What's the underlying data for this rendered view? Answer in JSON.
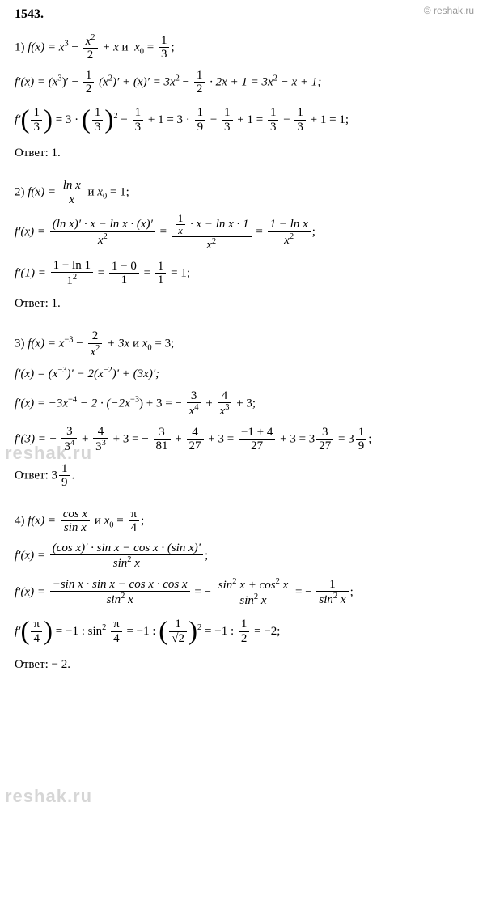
{
  "header": {
    "problem_number": "1543.",
    "copyright": "© reshak.ru"
  },
  "watermark": "reshak.ru",
  "p1": {
    "label": "1)",
    "func": "f(x) = x",
    "and": "и",
    "x0_label": "x",
    "x0_sub": "0",
    "eq": " = ",
    "frac_x2_num": "x",
    "frac_x2_sup": "2",
    "frac_x2_den": "2",
    "one_third_num": "1",
    "one_third_den": "3",
    "plus_x": " + x ",
    "line2_a": "f′(x) = (x",
    "line2_b": ")′ − ",
    "line2_c": "(x",
    "line2_d": ")′ + (x)′ = 3x",
    "line2_e": " − ",
    "line2_f": " · 2x + 1 = 3x",
    "line2_g": " − x + 1;",
    "half_num": "1",
    "half_den": "2",
    "line3_a": "f′",
    "line3_b": " = 3 · ",
    "line3_c": " − ",
    "line3_d": " + 1 = 3 · ",
    "one_ninth_num": "1",
    "one_ninth_den": "9",
    "line3_e": " − ",
    "line3_f": " + 1 = ",
    "line3_g": " − ",
    "line3_h": " + 1 = 1;",
    "answer_label": "Ответ:",
    "answer_val": "  1."
  },
  "p2": {
    "label": "2)",
    "func": "f(x) = ",
    "lnx_num": "ln x",
    "lnx_den": "x",
    "and": "  и  ",
    "x0": "x",
    "x0_sub": "0",
    "x0_val": " = 1;",
    "line2_a": "f′(x) = ",
    "q_num": "(ln x)′ · x − ln x · (x)′",
    "q_den": "x",
    "eq1": " = ",
    "q2_num_a": " · x − ln x · 1",
    "q2_inner_num": "1",
    "q2_inner_den": "x",
    "q2_den": "x",
    "eq2": " = ",
    "q3_num": "1 − ln x",
    "q3_den": "x",
    "semi": ";",
    "line3_a": "f′(1) = ",
    "r1_num": "1 − ln 1",
    "r1_den": "1",
    "eq3": " = ",
    "r2_num": "1 − 0",
    "r2_den": "1",
    "eq4": " = ",
    "r3_num": "1",
    "r3_den": "1",
    "eq5": " = 1;",
    "answer_label": "Ответ:",
    "answer_val": "  1."
  },
  "p3": {
    "label": "3)",
    "func_a": "f(x) = x",
    "exp_m3": "−3",
    "minus": " − ",
    "frac2_num": "2",
    "frac2_den": "x",
    "exp2": "2",
    "plus3x": " + 3x  ",
    "and": "и  ",
    "x0": "x",
    "x0_sub": "0",
    "x0_val": " = 3;",
    "line2": "f′(x) = (x",
    "line2_b": ")′ − 2(x",
    "exp_m2": "−2",
    "line2_c": ")′ + (3x)′;",
    "line3_a": "f′(x) = −3x",
    "exp_m4": "−4",
    "line3_b": " − 2 · (−2x",
    "line3_c": ") + 3 = − ",
    "f3_num": "3",
    "f3_den": "x",
    "exp4": "4",
    "line3_d": " + ",
    "f4_num": "4",
    "f4_den": "x",
    "exp3": "3",
    "line3_e": " + 3;",
    "line4_a": "f′(3) = − ",
    "g1_num": "3",
    "g1_den": "3",
    "line4_b": " + ",
    "g2_num": "4",
    "g2_den": "3",
    "line4_c": " + 3 = − ",
    "g3_num": "3",
    "g3_den": "81",
    "line4_d": " + ",
    "g4_num": "4",
    "g4_den": "27",
    "line4_e": " + 3 = ",
    "g5_num": "−1 + 4",
    "g5_den": "27",
    "line4_f": " + 3 = 3",
    "g6_num": "3",
    "g6_den": "27",
    "line4_g": " = 3",
    "g7_num": "1",
    "g7_den": "9",
    "semi": ";",
    "answer_label": "Ответ:",
    "ans_whole": "  3",
    "ans_num": "1",
    "ans_den": "9",
    "ans_dot": "."
  },
  "p4": {
    "label": "4)",
    "func": "f(x) = ",
    "f_num": "cos x",
    "f_den": "sin x",
    "and": "  и  ",
    "x0": "x",
    "x0_sub": "0",
    "eq": " = ",
    "pi4_num": "π",
    "pi4_den": "4",
    "semi": ";",
    "line2_a": "f′(x) = ",
    "q_num": "(cos x)′ · sin x − cos x · (sin x)′",
    "q_den": "sin",
    "exp2": "2",
    "q_den_x": " x",
    "line3_a": "f′(x) = ",
    "r_num": "−sin x · sin x − cos x · cos x",
    "r_den": "sin",
    "r_den_x": " x",
    "eq2": " = − ",
    "s_num_a": "sin",
    "s_num_b": " x + cos",
    "s_num_c": " x",
    "s_den": "sin",
    "s_den_x": " x",
    "eq3": " = − ",
    "t_num": "1",
    "t_den": "sin",
    "t_den_x": " x",
    "line4_a": "f′",
    "line4_b": " = −1 : sin",
    "line4_c": " ",
    "line4_d": " = −1 : ",
    "u_num": "1",
    "u_den": "√2",
    "line4_e": " = −1 : ",
    "v_num": "1",
    "v_den": "2",
    "line4_f": " = −2;",
    "answer_label": "Ответ:",
    "answer_val": "  − 2."
  }
}
